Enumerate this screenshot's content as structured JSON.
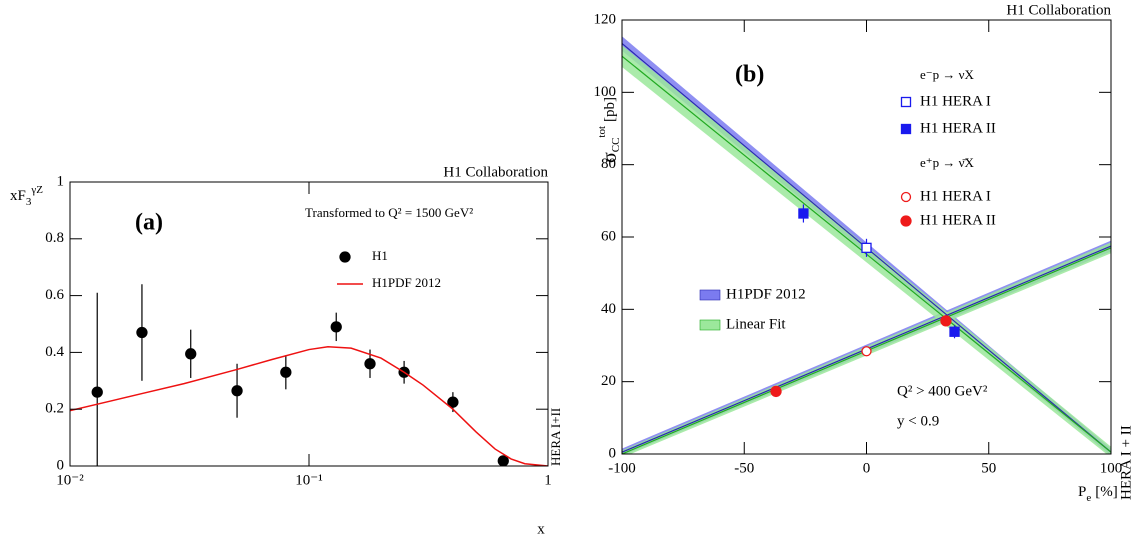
{
  "chart_data": [
    {
      "type": "errorbar",
      "title": "H1 Collaboration",
      "panel_label": "(a)",
      "note": "Transformed to Q² = 1500 GeV²",
      "side_note": "HERA I+II",
      "ylabel": {
        "text": "xF",
        "sub": "3",
        "sup": "γZ"
      },
      "xlabel": "x",
      "xscale": "log",
      "xlim": [
        0.01,
        1
      ],
      "xticks": [
        {
          "value": 0.01,
          "label": "10⁻²"
        },
        {
          "value": 0.1,
          "label": "10⁻¹"
        },
        1
      ],
      "ylim": [
        0,
        1
      ],
      "yticks": [
        0,
        0.2,
        0.4,
        0.6,
        0.8,
        1
      ],
      "series": [
        {
          "name": "H1",
          "color": "#000000",
          "marker": "circle",
          "filled": true,
          "x": [
            0.013,
            0.02,
            0.032,
            0.05,
            0.08,
            0.13,
            0.18,
            0.25,
            0.4,
            0.65
          ],
          "values": [
            0.26,
            0.47,
            0.395,
            0.265,
            0.33,
            0.49,
            0.36,
            0.33,
            0.225,
            0.018
          ],
          "errors": [
            0.35,
            0.17,
            0.085,
            0.095,
            0.06,
            0.05,
            0.05,
            0.04,
            0.035,
            0.012
          ]
        },
        {
          "name": "H1PDF 2012",
          "color": "#ee1111",
          "x": [
            0.01,
            0.015,
            0.02,
            0.03,
            0.05,
            0.07,
            0.1,
            0.12,
            0.15,
            0.2,
            0.25,
            0.3,
            0.4,
            0.5,
            0.6,
            0.7,
            0.8,
            1
          ],
          "values": [
            0.195,
            0.23,
            0.255,
            0.29,
            0.34,
            0.375,
            0.41,
            0.42,
            0.415,
            0.38,
            0.33,
            0.285,
            0.2,
            0.12,
            0.06,
            0.025,
            0.008,
            0
          ]
        }
      ]
    },
    {
      "type": "errorbar",
      "title": "H1 Collaboration",
      "panel_label": "(b)",
      "notes": [
        "Q² > 400 GeV²",
        "y < 0.9"
      ],
      "side_note": "HERA I + II",
      "ylabel": {
        "text": "σ",
        "sub": "CC",
        "sup": "tot",
        "unit": "[pb]"
      },
      "xlabel": {
        "text": "P",
        "sub": "e",
        "unit": "[%]"
      },
      "xlim": [
        -100,
        100
      ],
      "xticks": [
        -100,
        -50,
        0,
        50,
        100
      ],
      "ylim": [
        0,
        120
      ],
      "yticks": [
        0,
        20,
        40,
        60,
        80,
        100,
        120
      ],
      "legend_groups": [
        "e⁻p → νX",
        "e⁺p → ν̄X"
      ],
      "bands": [
        {
          "name": "H1PDF 2012",
          "color": "#2a2ab0",
          "fill": "#7b7bf0",
          "lines": [
            {
              "x": [
                -100,
                100
              ],
              "values": [
                113.5,
                0.5
              ],
              "band": [
                2,
                1
              ]
            },
            {
              "x": [
                -100,
                100
              ],
              "values": [
                0.5,
                57.5
              ],
              "band": [
                1,
                1.5
              ]
            }
          ]
        },
        {
          "name": "Linear Fit",
          "color": "#22aa22",
          "fill": "#9be89b",
          "lines": [
            {
              "x": [
                -100,
                100
              ],
              "values": [
                110,
                0.5
              ],
              "band": [
                3,
                1.5
              ]
            },
            {
              "x": [
                -100,
                100
              ],
              "values": [
                0,
                57
              ],
              "band": [
                1,
                1.5
              ]
            }
          ]
        }
      ],
      "series": [
        {
          "name": "H1 HERA I",
          "color": "#1a1aee",
          "marker": "square",
          "filled": false,
          "x": [
            0
          ],
          "values": [
            57
          ],
          "errors": [
            2.5
          ]
        },
        {
          "name": "H1 HERA II",
          "color": "#1a1aee",
          "marker": "square",
          "filled": true,
          "x": [
            -25.8,
            36
          ],
          "values": [
            66.5,
            33.8
          ],
          "errors": [
            2.5,
            1.8
          ]
        },
        {
          "name": "H1 HERA I",
          "color": "#ee1a1a",
          "marker": "circle",
          "filled": false,
          "x": [
            0
          ],
          "values": [
            28.4
          ],
          "errors": [
            0.9
          ]
        },
        {
          "name": "H1 HERA II",
          "color": "#ee1a1a",
          "marker": "circle",
          "filled": true,
          "x": [
            -37,
            32.5
          ],
          "values": [
            17.3,
            36.8
          ],
          "errors": [
            0.9,
            1.3
          ]
        }
      ]
    }
  ]
}
